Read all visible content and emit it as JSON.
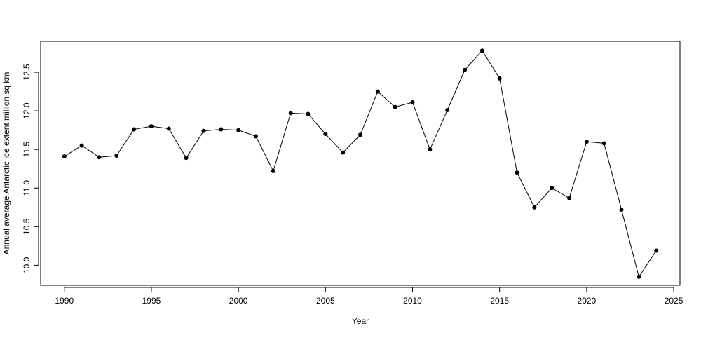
{
  "chart_data": {
    "type": "line",
    "x_label": "Year",
    "y_label": "Annual average Antarctic ice extent million sq km",
    "x": [
      1990,
      1991,
      1992,
      1993,
      1994,
      1995,
      1996,
      1997,
      1998,
      1999,
      2000,
      2001,
      2002,
      2003,
      2004,
      2005,
      2006,
      2007,
      2008,
      2009,
      2010,
      2011,
      2012,
      2013,
      2014,
      2015,
      2016,
      2017,
      2018,
      2019,
      2020,
      2021,
      2022,
      2023,
      2024
    ],
    "series": [
      {
        "color": "#000000",
        "values": [
          11.41,
          11.55,
          11.4,
          11.42,
          11.76,
          11.8,
          11.77,
          11.39,
          11.74,
          11.76,
          11.75,
          11.67,
          11.22,
          11.97,
          11.96,
          11.7,
          11.46,
          11.69,
          12.25,
          12.05,
          12.11,
          11.5,
          12.01,
          12.53,
          12.78,
          12.42,
          11.2,
          10.75,
          11.0,
          10.87,
          11.6,
          11.58,
          10.72,
          9.85,
          10.19
        ]
      }
    ],
    "xlim": [
      1988.64,
      2025.36
    ],
    "ylim": [
      9.74,
      12.9
    ],
    "xticks": [
      1990,
      1995,
      2000,
      2005,
      2010,
      2015,
      2020,
      2025
    ],
    "yticks": [
      {
        "value": 10,
        "label": "10.0"
      },
      10.5,
      {
        "value": 11,
        "label": "11.0"
      },
      11.5,
      {
        "value": 12,
        "label": "12.0"
      },
      12.5
    ]
  }
}
